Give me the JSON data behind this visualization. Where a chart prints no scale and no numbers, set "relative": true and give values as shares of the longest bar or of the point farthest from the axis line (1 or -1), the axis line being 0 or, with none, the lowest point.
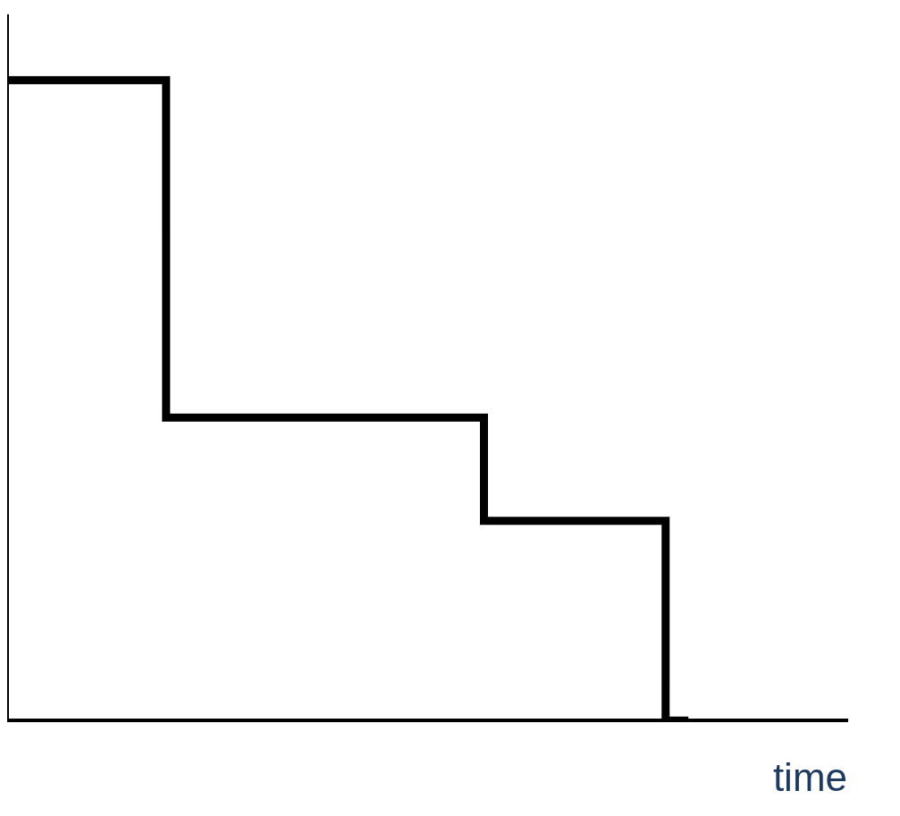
{
  "chart_data": {
    "type": "step",
    "relative": true,
    "xlabel": "time",
    "categories": [
      null,
      null,
      null,
      null,
      null,
      null,
      null,
      null,
      null,
      null,
      null,
      null,
      null,
      null,
      null,
      null,
      null,
      null,
      null,
      null,
      null,
      null,
      null,
      null,
      null,
      null,
      null,
      null,
      null,
      null,
      null,
      null,
      null,
      null,
      null,
      null,
      null,
      null
    ],
    "series": [
      {
        "color": "#000000",
        "values": [
          1,
          1,
          1,
          1,
          1,
          1,
          1,
          1,
          0.473,
          0.473,
          0.473,
          0.473,
          0.473,
          0.473,
          0.473,
          0.473,
          0.473,
          0.473,
          0.473,
          0.473,
          0.473,
          0.473,
          0.312,
          0.312,
          0.312,
          0.312,
          0.312,
          0.312,
          0.312,
          0.312,
          0,
          null,
          null,
          null,
          null,
          null,
          null,
          null
        ]
      }
    ],
    "grid": false,
    "legend": false,
    "marker": "none"
  }
}
